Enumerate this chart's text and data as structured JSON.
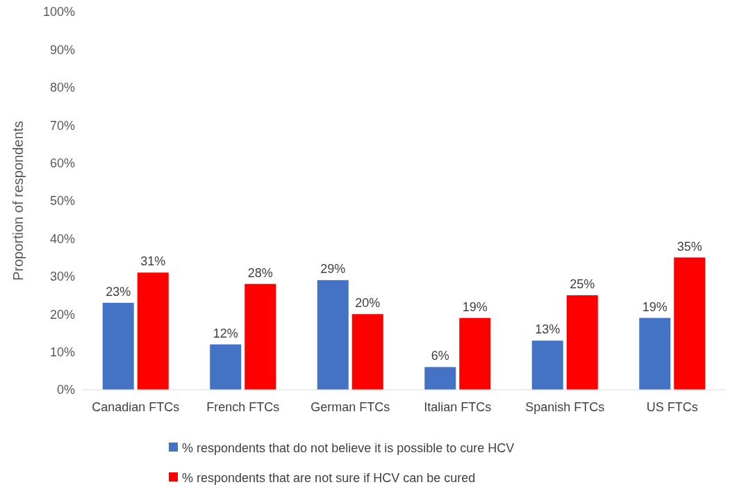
{
  "chart_data": {
    "type": "bar",
    "ylabel": "Proportion of respondents",
    "categories": [
      "Canadian FTCs",
      "French FTCs",
      "German FTCs",
      "Italian FTCs",
      "Spanish FTCs",
      "US FTCs"
    ],
    "series": [
      {
        "name": "% respondents that do not believe it is possible to cure HCV",
        "color": "#4472c4",
        "values": [
          23,
          12,
          29,
          6,
          13,
          19
        ],
        "value_labels": [
          "23%",
          "12%",
          "29%",
          "6%",
          "13%",
          "19%"
        ]
      },
      {
        "name": "% respondents that are not sure if HCV can be cured",
        "color": "#ff0000",
        "values": [
          31,
          28,
          20,
          19,
          25,
          35
        ],
        "value_labels": [
          "31%",
          "28%",
          "20%",
          "19%",
          "25%",
          "35%"
        ]
      }
    ],
    "ylim": [
      0,
      100
    ],
    "yticks": [
      {
        "value": 0,
        "label": "0%"
      },
      {
        "value": 10,
        "label": "10%"
      },
      {
        "value": 20,
        "label": "20%"
      },
      {
        "value": 30,
        "label": "30%"
      },
      {
        "value": 40,
        "label": "40%"
      },
      {
        "value": 50,
        "label": "50%"
      },
      {
        "value": 60,
        "label": "60%"
      },
      {
        "value": 70,
        "label": "70%"
      },
      {
        "value": 80,
        "label": "80%"
      },
      {
        "value": 90,
        "label": "90%"
      },
      {
        "value": 100,
        "label": "100%"
      }
    ],
    "legend": "bottom"
  }
}
